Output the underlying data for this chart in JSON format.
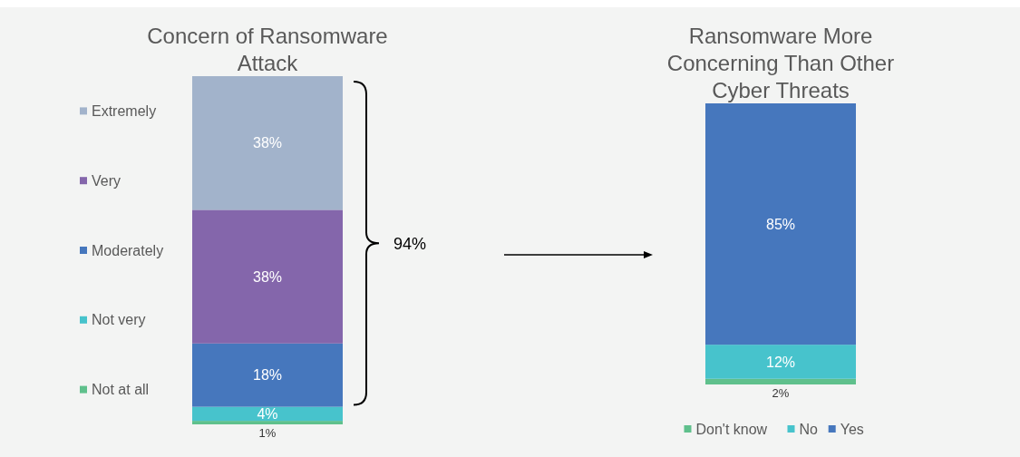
{
  "chart_data": [
    {
      "type": "bar",
      "title": "Concern of Ransomware Attack",
      "stacked": true,
      "categories": [
        null
      ],
      "legend": "left",
      "annotations": [
        "94%"
      ],
      "series": [
        {
          "name": "Not at all",
          "color": "#5fc08c",
          "values": [
            1
          ],
          "value_labels": [
            "1%"
          ]
        },
        {
          "name": "Not very",
          "color": "#47c3cc",
          "values": [
            4
          ],
          "value_labels": [
            "4%"
          ]
        },
        {
          "name": "Moderately",
          "color": "#4677bd",
          "values": [
            18
          ],
          "value_labels": [
            "18%"
          ]
        },
        {
          "name": "Very",
          "color": "#8466ab",
          "values": [
            38
          ],
          "value_labels": [
            "38%"
          ]
        },
        {
          "name": "Extremely",
          "color": "#a2b3cb",
          "values": [
            38
          ],
          "value_labels": [
            "38%"
          ]
        }
      ]
    },
    {
      "type": "bar",
      "title": "Ransomware More Concerning Than Other Cyber Threats",
      "stacked": true,
      "categories": [
        null
      ],
      "legend": "bottom",
      "series": [
        {
          "name": "Don't know",
          "color": "#5fc08c",
          "values": [
            2
          ],
          "value_labels": [
            "2%"
          ]
        },
        {
          "name": "No",
          "color": "#47c3cc",
          "values": [
            12
          ],
          "value_labels": [
            "12%"
          ]
        },
        {
          "name": "Yes",
          "color": "#4677bd",
          "values": [
            85
          ],
          "value_labels": [
            "85%"
          ]
        }
      ]
    }
  ]
}
